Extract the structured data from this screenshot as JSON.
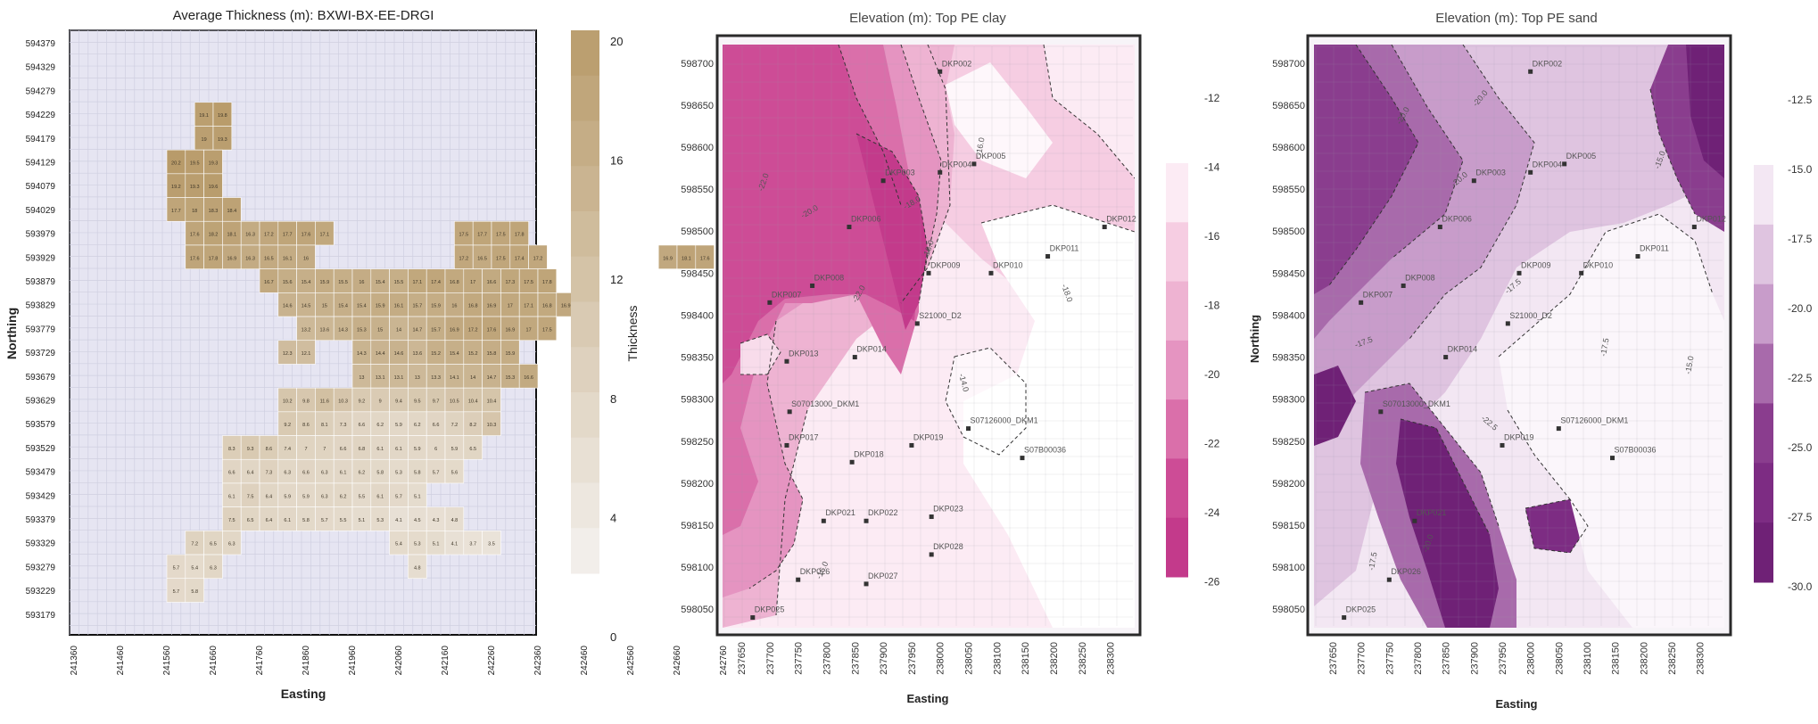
{
  "chart_data": [
    {
      "type": "heatmap",
      "title": "Average Thickness (m): BXWI-BX-EE-DRGI",
      "xlabel": "Easting",
      "ylabel": "Northing",
      "x_ticks": [
        "241360",
        "241460",
        "241560",
        "241660",
        "241760",
        "241860",
        "241960",
        "242060",
        "242160",
        "242260",
        "242360",
        "242460",
        "242560",
        "242660",
        "242760"
      ],
      "y_ticks": [
        "594379",
        "594329",
        "594279",
        "594229",
        "594179",
        "594129",
        "594079",
        "594029",
        "593979",
        "593929",
        "593879",
        "593829",
        "593779",
        "593729",
        "593679",
        "593629",
        "593579",
        "593529",
        "593479",
        "593429",
        "593379",
        "593329",
        "593279",
        "593229",
        "593179"
      ],
      "colorbar": {
        "label": "Thickness",
        "ticks": [
          "0",
          "4",
          "8",
          "12",
          "16",
          "20"
        ],
        "range": [
          0,
          20
        ]
      },
      "grid": true,
      "cells_note": "",
      "cell_rows": [
        {
          "northing": "594229",
          "from_easting": 241620,
          "values": [
            19.1,
            19.8
          ]
        },
        {
          "northing": "594179",
          "from_easting": 241620,
          "values": [
            19.0,
            19.3
          ]
        },
        {
          "northing": "594129",
          "from_easting": 241560,
          "values": [
            20.2,
            19.5,
            19.3
          ]
        },
        {
          "northing": "594079",
          "from_easting": 241560,
          "values": [
            19.2,
            19.3,
            19.6
          ]
        },
        {
          "northing": "594029",
          "from_easting": 241560,
          "values": [
            17.7,
            18.0,
            18.3,
            18.4
          ]
        },
        {
          "northing": "593979",
          "from_easting": 241600,
          "values": [
            17.6,
            18.2,
            18.1,
            16.3,
            17.2,
            17.7,
            17.6,
            17.1
          ]
        },
        {
          "northing": "593979b",
          "from_easting": 242180,
          "values": [
            17.5,
            17.7,
            17.5,
            17.8
          ]
        },
        {
          "northing": "593929",
          "from_easting": 241600,
          "values": [
            17.6,
            17.8,
            16.9,
            16.3,
            16.5,
            16.1,
            16.0
          ]
        },
        {
          "northing": "593929b",
          "from_easting": 242180,
          "values": [
            17.2,
            16.5,
            17.5,
            17.4,
            17.2
          ]
        },
        {
          "northing": "593929c",
          "from_easting": 242620,
          "values": [
            16.9,
            18.1,
            17.6
          ]
        },
        {
          "northing": "593879",
          "from_easting": 241760,
          "values": [
            16.7,
            15.6,
            15.4,
            15.9,
            15.5,
            16.0,
            15.4,
            15.5,
            17.1,
            17.4,
            16.8,
            17.0,
            16.6,
            17.3,
            17.5,
            17.8
          ]
        },
        {
          "northing": "593829",
          "from_easting": 241800,
          "values": [
            14.6,
            14.5,
            15.0,
            15.4,
            15.4,
            15.9,
            16.1,
            15.7,
            15.9,
            16.0,
            16.8,
            16.9,
            17.0,
            17.1,
            16.8,
            16.9,
            17.0
          ]
        },
        {
          "northing": "593779",
          "from_easting": 241840,
          "values": [
            13.2,
            13.6,
            14.3,
            15.3,
            15.0,
            14.0,
            14.7,
            15.7,
            16.9,
            17.2,
            17.6,
            16.9,
            17.0,
            17.5
          ]
        },
        {
          "northing": "593729",
          "from_easting": 241800,
          "values": [
            12.3,
            12.1
          ]
        },
        {
          "northing": "593729b",
          "from_easting": 241960,
          "values": [
            14.3,
            14.4,
            14.6,
            13.6,
            15.2,
            15.4,
            15.2,
            15.8,
            15.9
          ]
        },
        {
          "northing": "593679",
          "from_easting": 241960,
          "values": [
            13.0,
            13.1,
            13.1,
            13.0,
            13.3,
            14.1,
            14.0,
            14.7,
            15.3,
            16.6
          ]
        },
        {
          "northing": "593629",
          "from_easting": 241800,
          "values": [
            10.2,
            9.8,
            11.6,
            10.3,
            9.2,
            9.0,
            9.4,
            9.5,
            9.7,
            10.5,
            10.4,
            10.4
          ]
        },
        {
          "northing": "593579",
          "from_easting": 241800,
          "values": [
            9.2,
            8.6,
            8.1,
            7.3,
            6.6,
            6.2,
            5.9,
            6.2,
            6.6,
            7.2,
            8.2,
            10.3
          ]
        },
        {
          "northing": "593529",
          "from_easting": 241680,
          "values": [
            8.3,
            9.3,
            8.6,
            7.4,
            7.0,
            7.0,
            6.6,
            6.8,
            6.1,
            6.1,
            5.9,
            6.0,
            5.9,
            6.5
          ]
        },
        {
          "northing": "593479",
          "from_easting": 241680,
          "values": [
            6.6,
            6.4,
            7.3,
            6.3,
            6.6,
            6.3,
            6.1,
            6.2,
            5.8,
            5.3,
            5.8,
            5.7,
            5.6
          ]
        },
        {
          "northing": "593429",
          "from_easting": 241680,
          "values": [
            6.1,
            7.5,
            6.4,
            5.9,
            5.9,
            6.3,
            6.2,
            5.5,
            6.1,
            5.7,
            5.1
          ]
        },
        {
          "northing": "593379",
          "from_easting": 241680,
          "values": [
            7.5,
            6.5,
            6.4,
            6.1,
            5.8,
            5.7,
            5.5,
            5.1,
            5.3,
            4.1,
            4.5,
            4.3,
            4.8
          ]
        },
        {
          "northing": "593329",
          "from_easting": 241600,
          "values": [
            7.2,
            6.5,
            6.3
          ]
        },
        {
          "northing": "593329b",
          "from_easting": 242040,
          "values": [
            5.4,
            5.3,
            5.1,
            4.1,
            3.7,
            3.5
          ]
        },
        {
          "northing": "593279",
          "from_easting": 241560,
          "values": [
            5.7,
            5.4,
            6.3
          ]
        },
        {
          "northing": "593279b",
          "from_easting": 242080,
          "values": [
            4.8
          ]
        },
        {
          "northing": "593229",
          "from_easting": 241560,
          "values": [
            5.7,
            5.8
          ]
        }
      ]
    },
    {
      "type": "contour",
      "title": "Elevation (m): Top PE clay",
      "xlabel": "Easting",
      "ylabel": "",
      "x_ticks": [
        "237650",
        "237700",
        "237750",
        "237800",
        "237850",
        "237900",
        "237950",
        "238000",
        "238050",
        "238100",
        "238150",
        "238200",
        "238250",
        "238300"
      ],
      "y_ticks": [
        "598700",
        "598650",
        "598600",
        "598550",
        "598500",
        "598450",
        "598400",
        "598350",
        "598300",
        "598250",
        "598200",
        "598150",
        "598100",
        "598050"
      ],
      "xlim": [
        237620,
        238340
      ],
      "ylim": [
        598030,
        598720
      ],
      "colorbar": {
        "ticks": [
          "-12",
          "-14",
          "-16",
          "-18",
          "-20",
          "-22",
          "-24",
          "-26"
        ],
        "range": [
          -26,
          -12
        ]
      },
      "contour_labels": [
        "-22.0",
        "-20.0",
        "-22.0",
        "-18.0",
        "-16.0",
        "-14.0",
        "-18.0",
        "-16.0",
        "-18.0"
      ],
      "wells": [
        {
          "name": "DKP002",
          "x": 238000,
          "y": 598690
        },
        {
          "name": "DKP003",
          "x": 237900,
          "y": 598560
        },
        {
          "name": "DKP004",
          "x": 238000,
          "y": 598570
        },
        {
          "name": "DKP005",
          "x": 238060,
          "y": 598580
        },
        {
          "name": "DKP006",
          "x": 237840,
          "y": 598505
        },
        {
          "name": "DKP007",
          "x": 237700,
          "y": 598415
        },
        {
          "name": "DKP008",
          "x": 237775,
          "y": 598435
        },
        {
          "name": "DKP009",
          "x": 237980,
          "y": 598450
        },
        {
          "name": "DKP010",
          "x": 238090,
          "y": 598450
        },
        {
          "name": "DKP011",
          "x": 238190,
          "y": 598470
        },
        {
          "name": "DKP012",
          "x": 238290,
          "y": 598505
        },
        {
          "name": "DKP013",
          "x": 237730,
          "y": 598345
        },
        {
          "name": "DKP014",
          "x": 237850,
          "y": 598350
        },
        {
          "name": "S21000_D2",
          "x": 237960,
          "y": 598390
        },
        {
          "name": "S07013000_DKM1",
          "x": 237735,
          "y": 598285
        },
        {
          "name": "S07126000_DKM1",
          "x": 238050,
          "y": 598265
        },
        {
          "name": "DKP017",
          "x": 237730,
          "y": 598245
        },
        {
          "name": "DKP019",
          "x": 237950,
          "y": 598245
        },
        {
          "name": "DKP018",
          "x": 237845,
          "y": 598225
        },
        {
          "name": "S07B00036",
          "x": 238145,
          "y": 598230
        },
        {
          "name": "DKP021",
          "x": 237795,
          "y": 598155
        },
        {
          "name": "DKP022",
          "x": 237870,
          "y": 598155
        },
        {
          "name": "DKP023",
          "x": 237985,
          "y": 598160
        },
        {
          "name": "DKP028",
          "x": 237985,
          "y": 598115
        },
        {
          "name": "DKP026",
          "x": 237750,
          "y": 598085
        },
        {
          "name": "DKP027",
          "x": 237870,
          "y": 598080
        },
        {
          "name": "DKP025",
          "x": 237670,
          "y": 598040
        }
      ]
    },
    {
      "type": "contour",
      "title": "Elevation (m): Top PE sand",
      "xlabel": "Easting",
      "ylabel": "Northing",
      "x_ticks": [
        "237650",
        "237700",
        "237750",
        "237800",
        "237850",
        "237900",
        "237950",
        "238000",
        "238050",
        "238100",
        "238150",
        "238200",
        "238250",
        "238300"
      ],
      "y_ticks": [
        "598700",
        "598650",
        "598600",
        "598550",
        "598500",
        "598450",
        "598400",
        "598350",
        "598300",
        "598250",
        "598200",
        "598150",
        "598100",
        "598050"
      ],
      "xlim": [
        237620,
        238340
      ],
      "ylim": [
        598030,
        598720
      ],
      "colorbar": {
        "ticks": [
          "-12.5",
          "-15.0",
          "-17.5",
          "-20.0",
          "-22.5",
          "-25.0",
          "-27.5",
          "-30.0"
        ],
        "range": [
          -30,
          -12.5
        ]
      },
      "contour_labels": [
        "-20.0",
        "-20.0",
        "-17.5",
        "-15.0",
        "-17.5",
        "-17.5",
        "-20.0",
        "-22.5",
        "-17.5",
        "-20.0",
        "-15.0"
      ],
      "wells": [
        {
          "name": "DKP002",
          "x": 238000,
          "y": 598690
        },
        {
          "name": "DKP003",
          "x": 237900,
          "y": 598560
        },
        {
          "name": "DKP004",
          "x": 238000,
          "y": 598570
        },
        {
          "name": "DKP005",
          "x": 238060,
          "y": 598580
        },
        {
          "name": "DKP006",
          "x": 237840,
          "y": 598505
        },
        {
          "name": "DKP007",
          "x": 237700,
          "y": 598415
        },
        {
          "name": "DKP008",
          "x": 237775,
          "y": 598435
        },
        {
          "name": "DKP009",
          "x": 237980,
          "y": 598450
        },
        {
          "name": "DKP010",
          "x": 238090,
          "y": 598450
        },
        {
          "name": "DKP011",
          "x": 238190,
          "y": 598470
        },
        {
          "name": "DKP012",
          "x": 238290,
          "y": 598505
        },
        {
          "name": "DKP014",
          "x": 237850,
          "y": 598350
        },
        {
          "name": "S21000_D2",
          "x": 237960,
          "y": 598390
        },
        {
          "name": "S07013000_DKM1",
          "x": 237735,
          "y": 598285
        },
        {
          "name": "S07126000_DKM1",
          "x": 238050,
          "y": 598265
        },
        {
          "name": "DKP019",
          "x": 237950,
          "y": 598245
        },
        {
          "name": "S07B00036",
          "x": 238145,
          "y": 598230
        },
        {
          "name": "DKP021",
          "x": 237795,
          "y": 598155
        },
        {
          "name": "DKP026",
          "x": 237750,
          "y": 598085
        },
        {
          "name": "DKP025",
          "x": 237670,
          "y": 598040
        }
      ]
    }
  ]
}
